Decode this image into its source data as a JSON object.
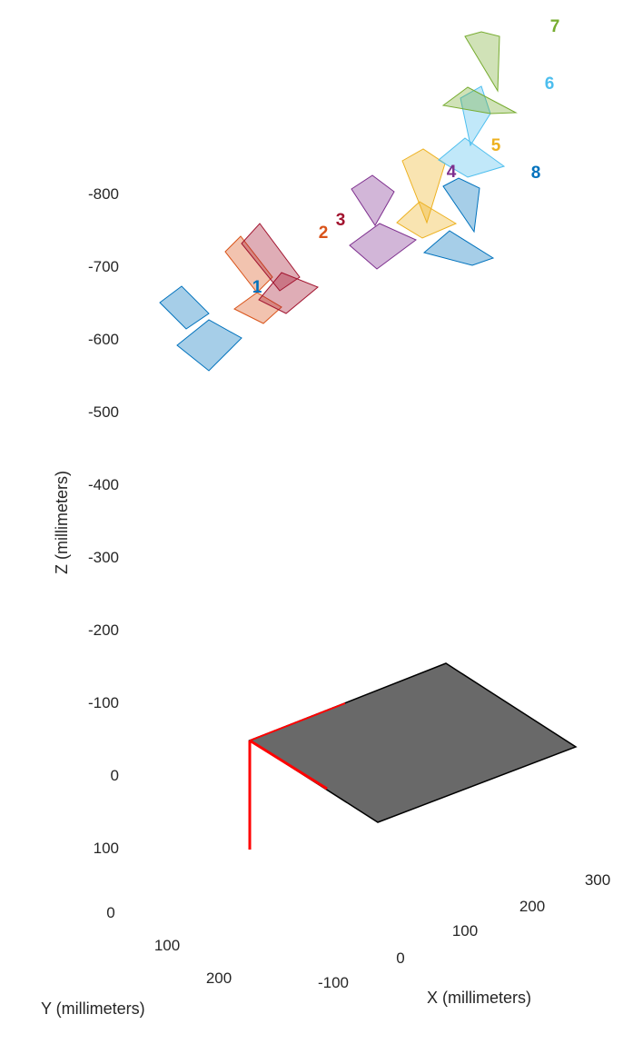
{
  "chart_data": {
    "type": "3d-scene",
    "xlabel": "X (millimeters)",
    "ylabel": "Y (millimeters)",
    "zlabel": "Z (millimeters)",
    "x_ticks": [
      "-100",
      "0",
      "100",
      "200",
      "300"
    ],
    "y_ticks": [
      "0",
      "100",
      "200"
    ],
    "z_ticks": [
      "-800",
      "-700",
      "-600",
      "-500",
      "-400",
      "-300",
      "-200",
      "-100",
      "0",
      "100"
    ],
    "z_direction": "reversed",
    "grid": true,
    "checkerboard": {
      "color": "#696969",
      "origin_axes_color": "#ff0000"
    },
    "cameras": [
      {
        "label": "1",
        "color": "#0072bd"
      },
      {
        "label": "2",
        "color": "#d95319"
      },
      {
        "label": "3",
        "color": "#a2142f"
      },
      {
        "label": "4",
        "color": "#7e2f8e"
      },
      {
        "label": "5",
        "color": "#edb120"
      },
      {
        "label": "6",
        "color": "#4dbeee"
      },
      {
        "label": "7",
        "color": "#77ac30"
      },
      {
        "label": "8",
        "color": "#0072bd"
      }
    ]
  }
}
